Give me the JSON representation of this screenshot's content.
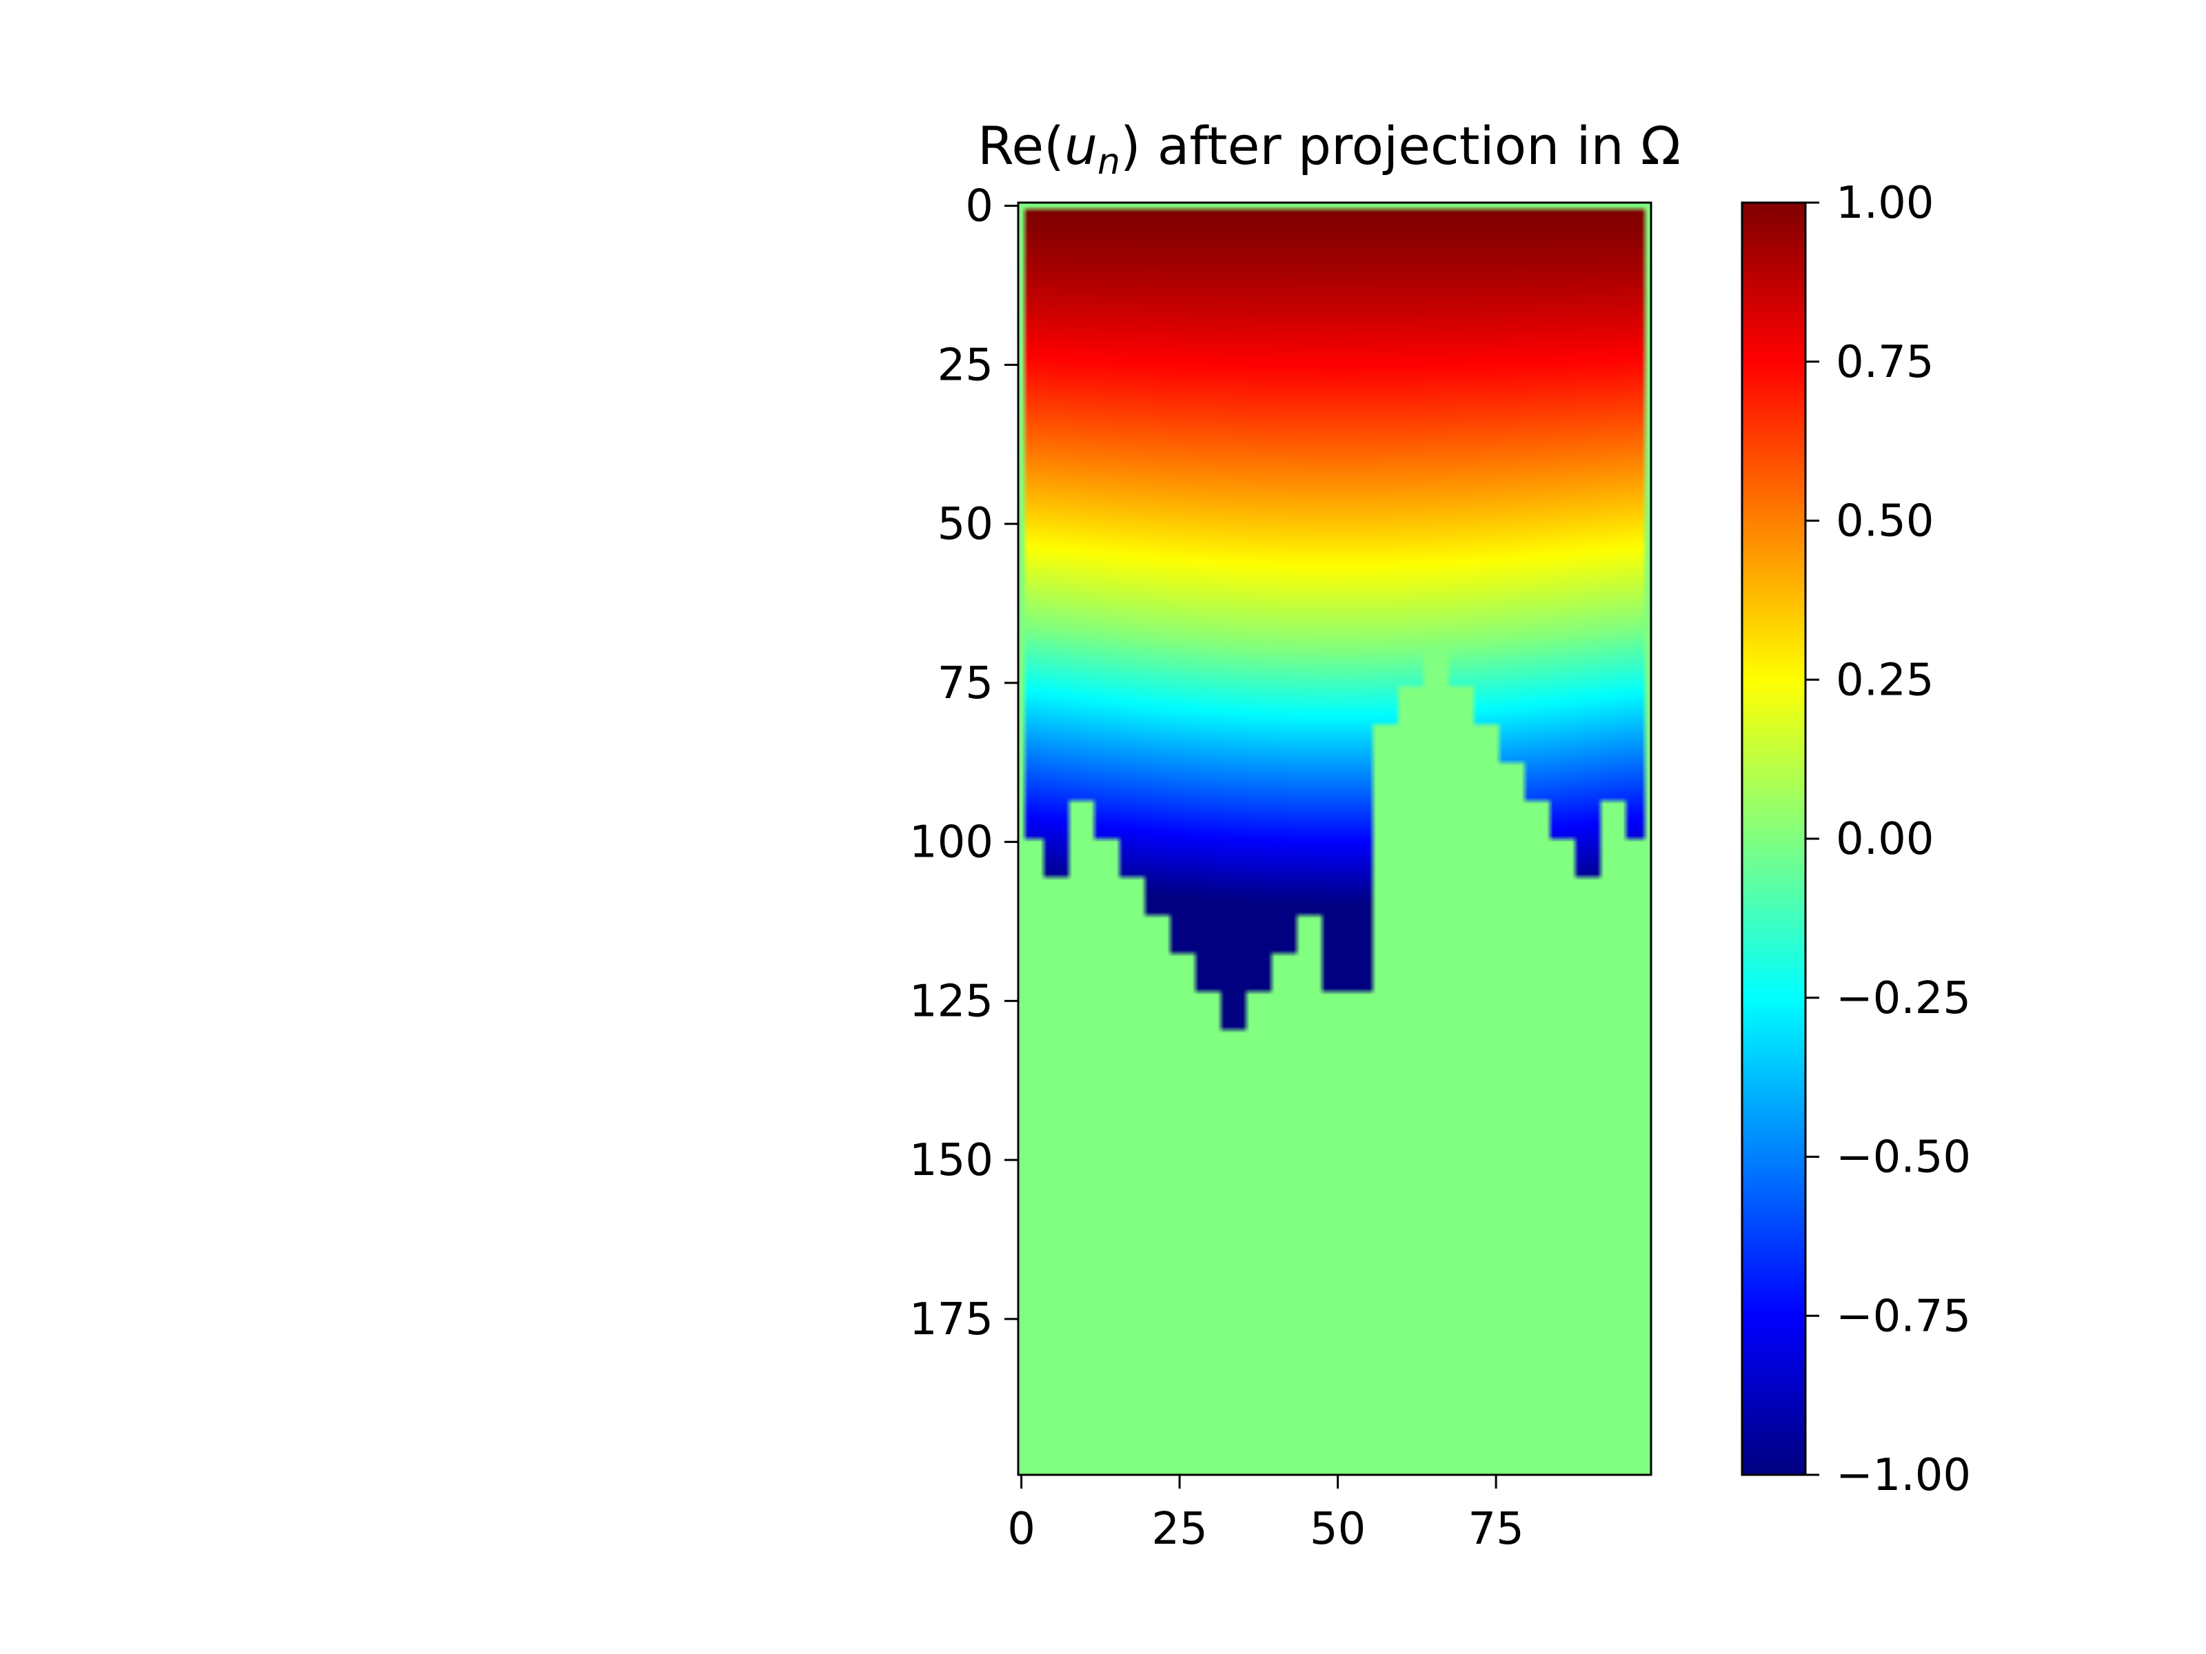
{
  "chart_data": {
    "type": "heatmap",
    "title": {
      "prefix": "Re(",
      "var": "u",
      "sub": "n",
      "suffix": ") after projection in Ω"
    },
    "colormap": "jet",
    "grid": false,
    "image_shape": {
      "rows": 200,
      "cols": 100
    },
    "xlim": [
      -0.5,
      99.5
    ],
    "ylim": [
      199.5,
      -0.5
    ],
    "x_ticks": [
      0,
      25,
      50,
      75
    ],
    "x_tick_labels": [
      "0",
      "25",
      "50",
      "75"
    ],
    "y_ticks": [
      0,
      25,
      50,
      75,
      100,
      125,
      150,
      175
    ],
    "y_tick_labels": [
      "0",
      "25",
      "50",
      "75",
      "100",
      "125",
      "150",
      "175"
    ],
    "colorbar": {
      "vmin": -1.0,
      "vmax": 1.0,
      "ticks": [
        1.0,
        0.75,
        0.5,
        0.25,
        0.0,
        -0.25,
        -0.5,
        -0.75,
        -1.0
      ],
      "tick_labels": [
        "1.00",
        "0.75",
        "0.50",
        "0.25",
        "0.00",
        "−0.25",
        "−0.50",
        "−0.75",
        "−1.00"
      ],
      "position": "right"
    },
    "field": {
      "description_values": "Re(u_n) ≈ 1 at row 0, decreasing with row (≈0 near row 65, ≈-0.85 near row 100); set to 0 outside Ω",
      "top_value": 1.0,
      "zero_crossing_row": 66,
      "min_value": -1.0,
      "outside_value": 0.0,
      "omega_block_size": 6,
      "omega_boundary_rows_by_col_block": [
        100,
        106,
        94,
        100,
        106,
        112,
        118,
        124,
        130,
        124,
        118,
        112,
        124,
        124,
        82,
        76,
        70,
        76,
        82,
        88,
        94,
        100,
        106,
        94,
        100
      ]
    }
  }
}
